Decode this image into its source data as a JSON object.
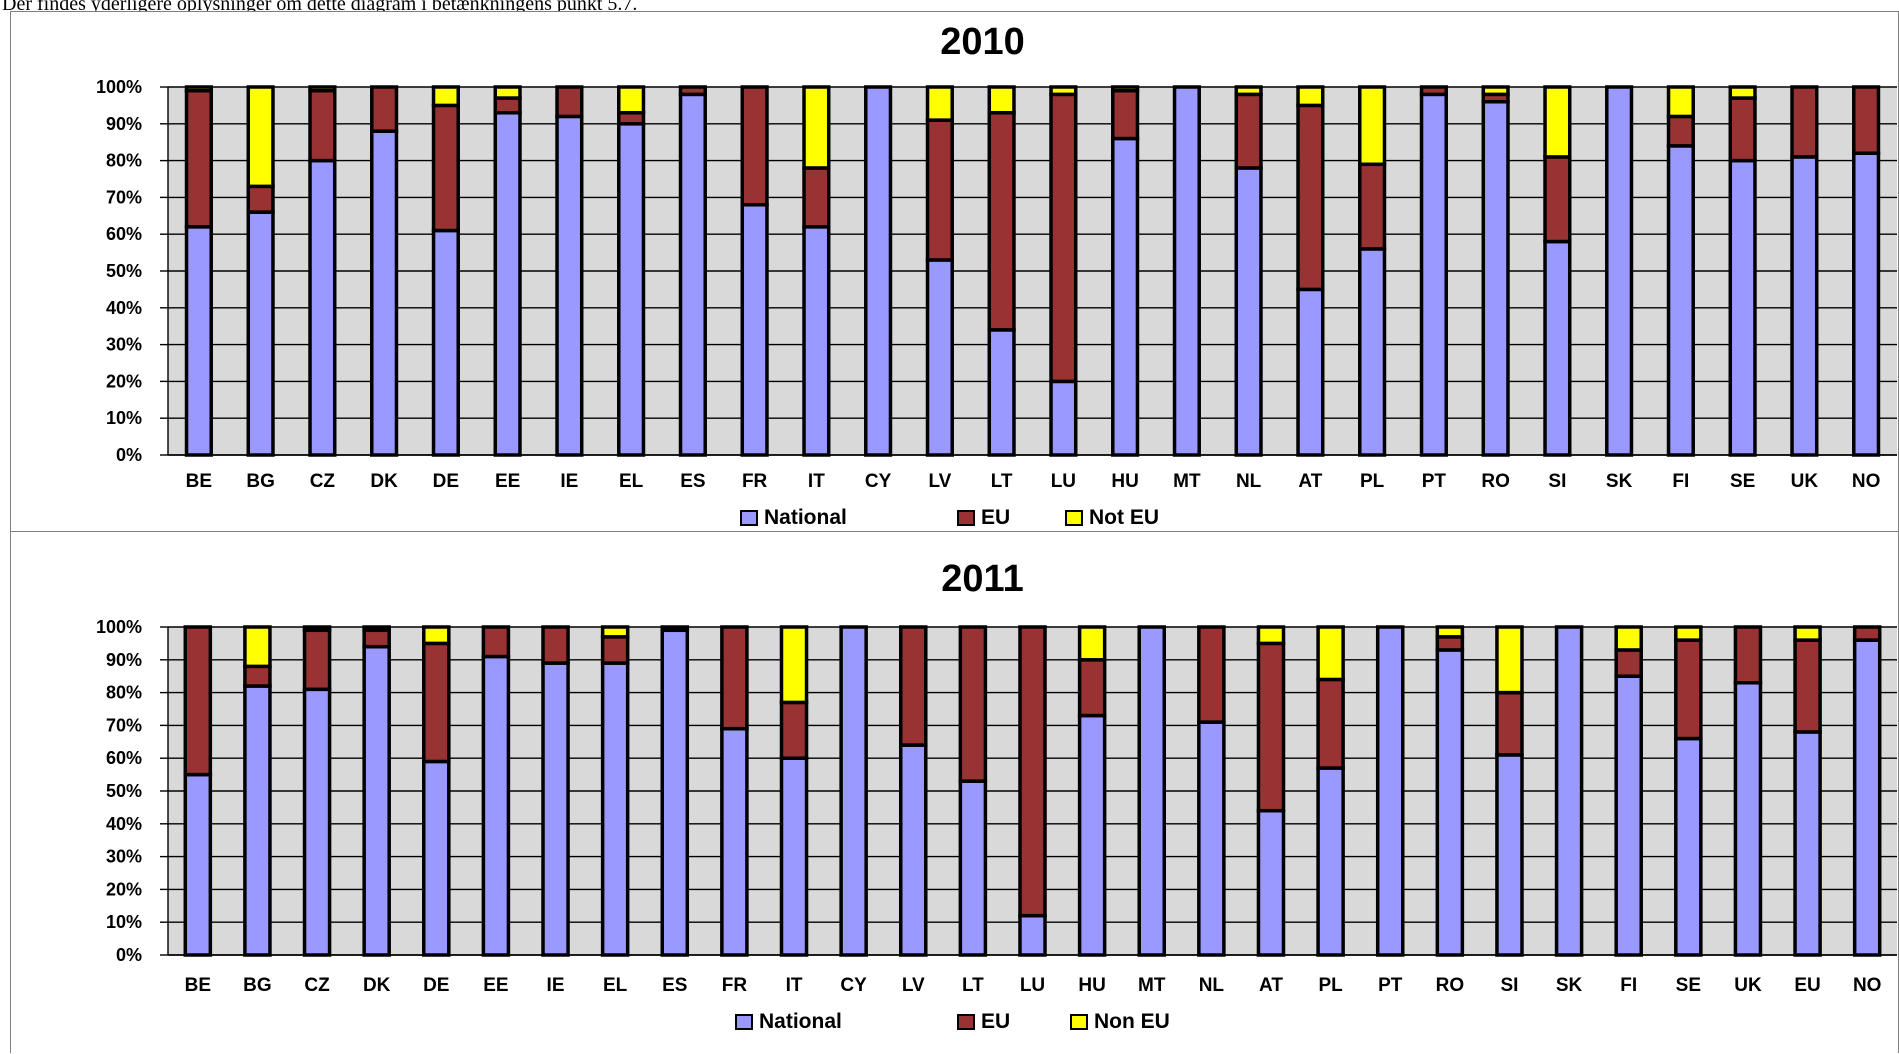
{
  "caption": "Der findes yderligere oplysninger om dette diagram i betænkningens punkt 5.7.",
  "colors": {
    "national": "#9999ff",
    "eu": "#993333",
    "noneu": "#ffff00",
    "plot_bg": "#d9d9d9",
    "grid": "#000000",
    "outline": "#000000"
  },
  "chart_data": [
    {
      "type": "bar",
      "stacked": true,
      "title": "2010",
      "ylim": [
        0,
        100
      ],
      "yticks": [
        "0%",
        "10%",
        "20%",
        "30%",
        "40%",
        "50%",
        "60%",
        "70%",
        "80%",
        "90%",
        "100%"
      ],
      "grid": true,
      "legend_position": "bottom",
      "categories": [
        "BE",
        "BG",
        "CZ",
        "DK",
        "DE",
        "EE",
        "IE",
        "EL",
        "ES",
        "FR",
        "IT",
        "CY",
        "LV",
        "LT",
        "LU",
        "HU",
        "MT",
        "NL",
        "AT",
        "PL",
        "PT",
        "RO",
        "SI",
        "SK",
        "FI",
        "SE",
        "UK",
        "NO"
      ],
      "series": [
        {
          "name": "National",
          "color": "#9999ff",
          "values": [
            62,
            66,
            80,
            88,
            61,
            93,
            92,
            90,
            98,
            68,
            62,
            100,
            53,
            34,
            20,
            86,
            100,
            78,
            45,
            56,
            98,
            96,
            58,
            100,
            84,
            80,
            81,
            82
          ]
        },
        {
          "name": "EU",
          "color": "#993333",
          "values": [
            37,
            7,
            19,
            12,
            34,
            4,
            8,
            3,
            2,
            32,
            16,
            0,
            38,
            59,
            78,
            13,
            0,
            20,
            50,
            23,
            2,
            2,
            23,
            0,
            8,
            17,
            19,
            18
          ]
        },
        {
          "name": "Not EU",
          "color": "#ffff00",
          "values": [
            1,
            27,
            1,
            0,
            5,
            3,
            0,
            7,
            0,
            0,
            22,
            0,
            9,
            7,
            2,
            1,
            0,
            2,
            5,
            21,
            0,
            2,
            19,
            0,
            8,
            3,
            0,
            0
          ]
        }
      ]
    },
    {
      "type": "bar",
      "stacked": true,
      "title": "2011",
      "ylim": [
        0,
        100
      ],
      "yticks": [
        "0%",
        "10%",
        "20%",
        "30%",
        "40%",
        "50%",
        "60%",
        "70%",
        "80%",
        "90%",
        "100%"
      ],
      "grid": true,
      "legend_position": "bottom",
      "categories": [
        "BE",
        "BG",
        "CZ",
        "DK",
        "DE",
        "EE",
        "IE",
        "EL",
        "ES",
        "FR",
        "IT",
        "CY",
        "LV",
        "LT",
        "LU",
        "HU",
        "MT",
        "NL",
        "AT",
        "PL",
        "PT",
        "RO",
        "SI",
        "SK",
        "FI",
        "SE",
        "UK",
        "EU",
        "NO"
      ],
      "series": [
        {
          "name": "National",
          "color": "#9999ff",
          "values": [
            55,
            82,
            81,
            94,
            59,
            91,
            89,
            89,
            99,
            69,
            60,
            100,
            64,
            53,
            12,
            73,
            100,
            71,
            44,
            57,
            100,
            93,
            61,
            100,
            85,
            66,
            83,
            68,
            96
          ]
        },
        {
          "name": "EU",
          "color": "#993333",
          "values": [
            45,
            6,
            18,
            5,
            36,
            9,
            11,
            8,
            1,
            31,
            17,
            0,
            36,
            47,
            88,
            17,
            0,
            29,
            51,
            27,
            0,
            4,
            19,
            0,
            8,
            30,
            17,
            28,
            4
          ]
        },
        {
          "name": "Non EU",
          "color": "#ffff00",
          "values": [
            0,
            12,
            1,
            1,
            5,
            0,
            0,
            3,
            0,
            0,
            23,
            0,
            0,
            0,
            0,
            10,
            0,
            0,
            5,
            16,
            0,
            3,
            20,
            0,
            7,
            4,
            0,
            4,
            0
          ]
        }
      ]
    }
  ]
}
